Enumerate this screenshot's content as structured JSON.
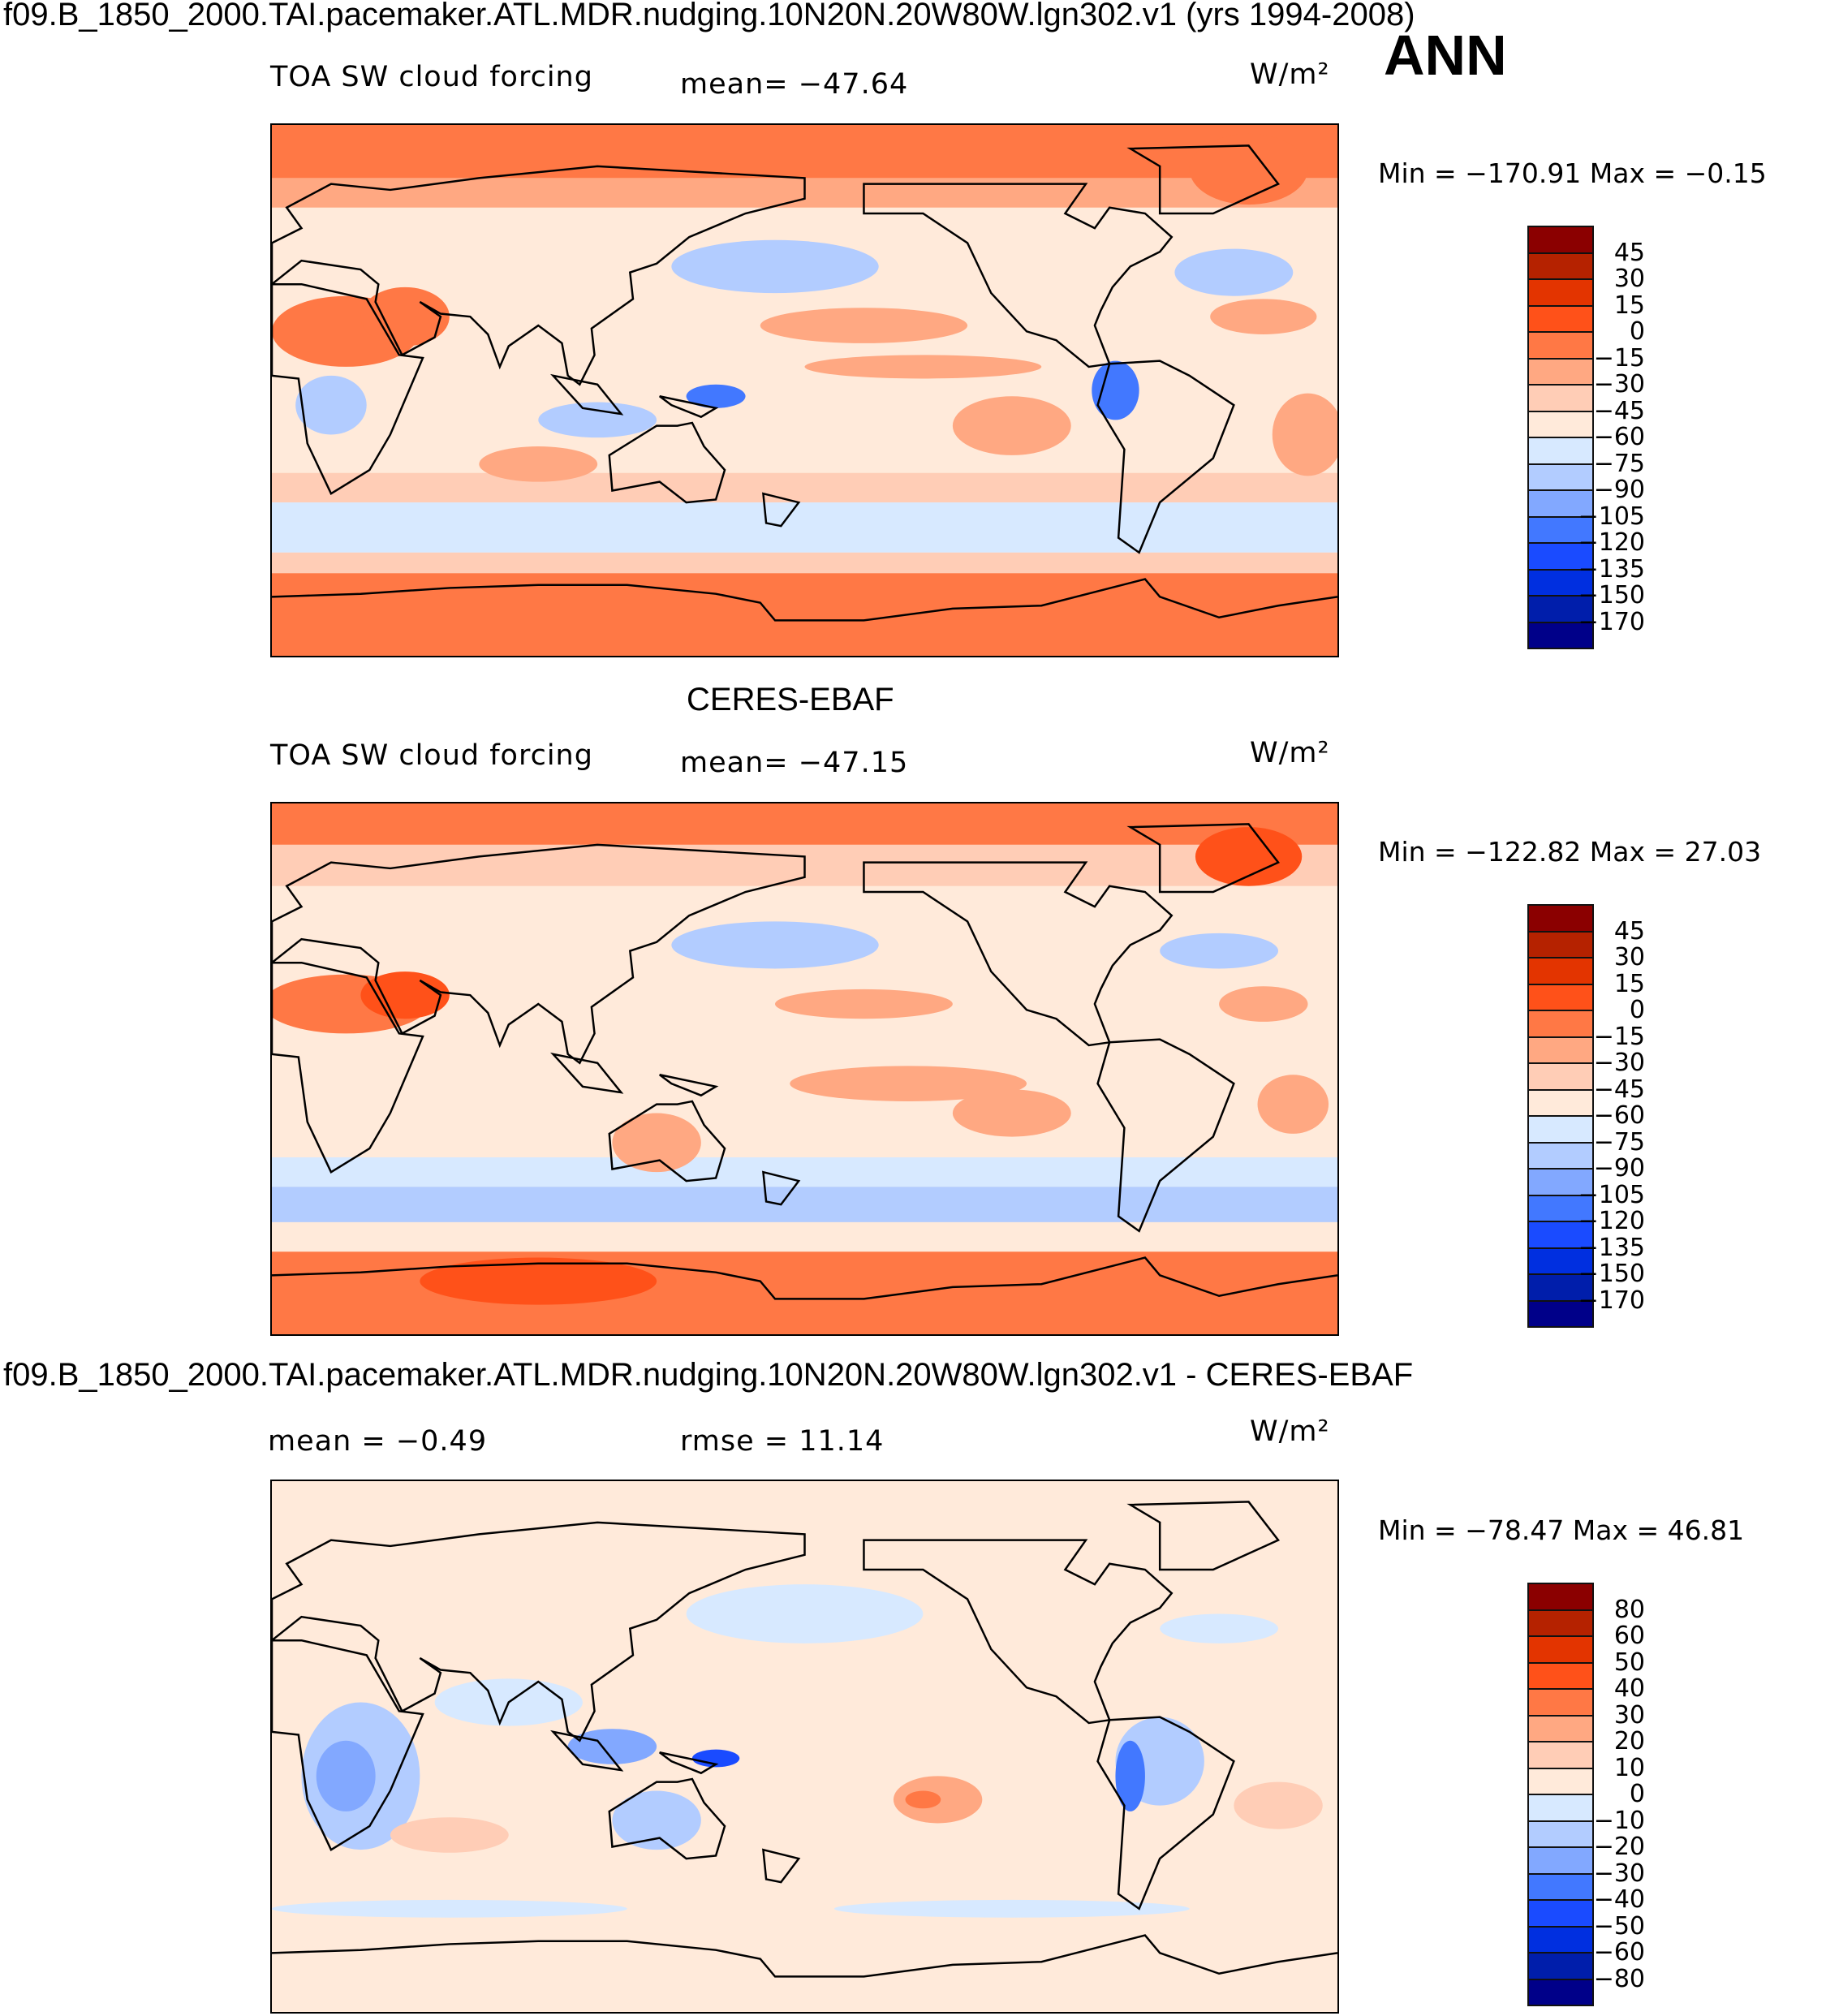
{
  "header": {
    "title": "f09.B_1850_2000.TAI.pacemaker.ATL.MDR.nudging.10N20N.20W80W.lgn302.v1 (yrs 1994-2008)",
    "season": "ANN"
  },
  "chart_data": [
    {
      "type": "heatmap",
      "variable": "TOA SW cloud forcing",
      "mean_label": "mean=  −47.64",
      "mean": -47.64,
      "units": "W/m²",
      "min_max_label": "Min  =  −170.91  Max  =   −0.15",
      "min": -170.91,
      "max": -0.15,
      "levels": [
        "45",
        "30",
        "15",
        "0",
        "−15",
        "−30",
        "−45",
        "−60",
        "−75",
        "−90",
        "−105",
        "−120",
        "−135",
        "−150",
        "−170"
      ]
    },
    {
      "type": "heatmap",
      "subtitle": "CERES-EBAF",
      "variable": "TOA SW cloud forcing",
      "mean_label": "mean=  −47.15",
      "mean": -47.15,
      "units": "W/m²",
      "min_max_label": "Min  =  −122.82  Max  =   27.03",
      "min": -122.82,
      "max": 27.03,
      "levels": [
        "45",
        "30",
        "15",
        "0",
        "−15",
        "−30",
        "−45",
        "−60",
        "−75",
        "−90",
        "−105",
        "−120",
        "−135",
        "−150",
        "−170"
      ]
    },
    {
      "type": "heatmap",
      "subtitle": "f09.B_1850_2000.TAI.pacemaker.ATL.MDR.nudging.10N20N.20W80W.lgn302.v1 - CERES-EBAF",
      "mean_label": "mean  =   −0.49",
      "mean": -0.49,
      "rmse_label": "rmse  =   11.14",
      "rmse": 11.14,
      "units": "W/m²",
      "min_max_label": "Min  =  −78.47  Max  =   46.81",
      "min": -78.47,
      "max": 46.81,
      "levels": [
        "80",
        "60",
        "50",
        "40",
        "30",
        "20",
        "10",
        "0",
        "−10",
        "−20",
        "−30",
        "−40",
        "−50",
        "−60",
        "−80"
      ]
    }
  ],
  "palette": [
    "#8b0000",
    "#b52200",
    "#e33400",
    "#ff5119",
    "#ff7845",
    "#ffa882",
    "#ffcdb6",
    "#ffeada",
    "#d7e9ff",
    "#b2ccff",
    "#82a8ff",
    "#4278ff",
    "#1a4bff",
    "#002fe0",
    "#001eab",
    "#000089"
  ]
}
